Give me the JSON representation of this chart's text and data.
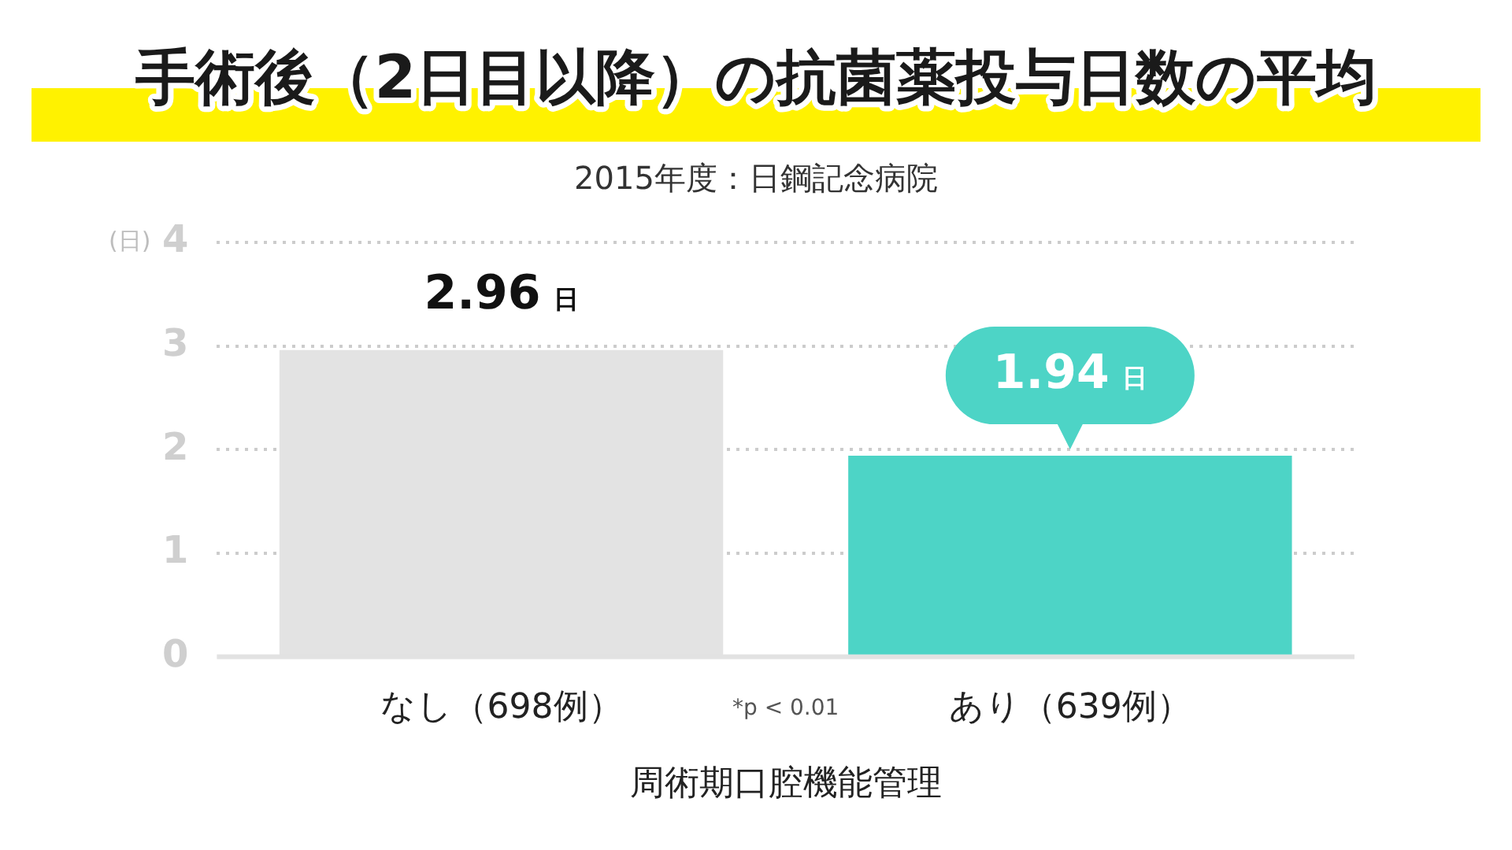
{
  "chart_data": {
    "type": "bar",
    "title": "手術後（2日目以降）の抗菌薬投与日数の平均",
    "subtitle": "2015年度：日鋼記念病院",
    "xlabel": "周術期口腔機能管理",
    "ylabel": "(日)",
    "categories": [
      "なし（698例）",
      "あり（639例）"
    ],
    "values": [
      2.96,
      1.94
    ],
    "colors": [
      "#e3e3e3",
      "#4dd4c6"
    ],
    "value_labels": [
      "2.96 日",
      "1.94 日"
    ],
    "ylim": [
      0,
      4
    ],
    "yticks": [
      0,
      1,
      2,
      3,
      4
    ],
    "grid": "y",
    "annotations": [
      "*p < 0.01"
    ]
  }
}
